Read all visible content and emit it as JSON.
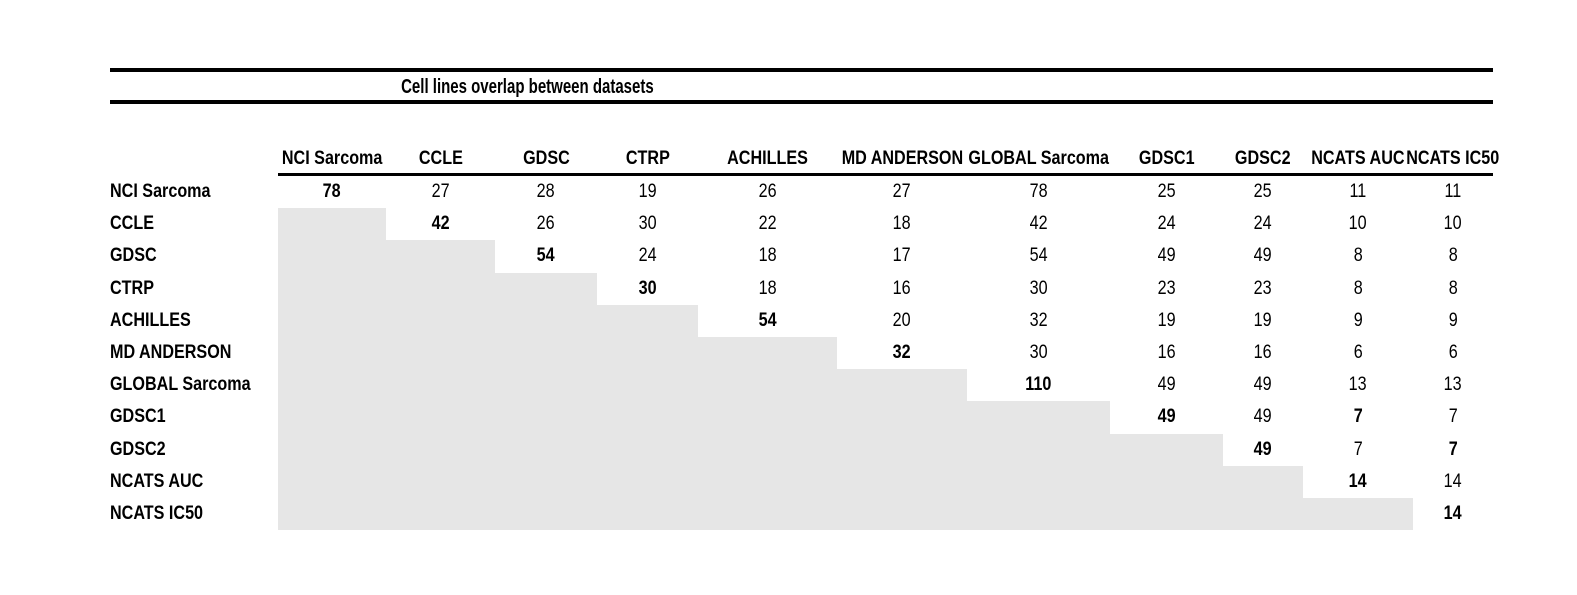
{
  "title": "Cell lines overlap between datasets",
  "colors": {
    "background": "#ffffff",
    "rule": "#000000",
    "text": "#000000",
    "shaded_cell": "#e6e6e6"
  },
  "table": {
    "columns": [
      "NCI Sarcoma",
      "CCLE",
      "GDSC",
      "CTRP",
      "ACHILLES",
      "MD ANDERSON",
      "GLOBAL Sarcoma",
      "GDSC1",
      "GDSC2",
      "NCATS AUC",
      "NCATS IC50"
    ],
    "rows": [
      {
        "label": "NCI Sarcoma",
        "values": [
          "78",
          "27",
          "28",
          "19",
          "26",
          "27",
          "78",
          "25",
          "25",
          "11",
          "11"
        ],
        "bold": [
          0
        ]
      },
      {
        "label": "CCLE",
        "values": [
          null,
          "42",
          "26",
          "30",
          "22",
          "18",
          "42",
          "24",
          "24",
          "10",
          "10"
        ],
        "bold": [
          1
        ]
      },
      {
        "label": "GDSC",
        "values": [
          null,
          null,
          "54",
          "24",
          "18",
          "17",
          "54",
          "49",
          "49",
          "8",
          "8"
        ],
        "bold": [
          2
        ]
      },
      {
        "label": "CTRP",
        "values": [
          null,
          null,
          null,
          "30",
          "18",
          "16",
          "30",
          "23",
          "23",
          "8",
          "8"
        ],
        "bold": [
          3
        ]
      },
      {
        "label": "ACHILLES",
        "values": [
          null,
          null,
          null,
          null,
          "54",
          "20",
          "32",
          "19",
          "19",
          "9",
          "9"
        ],
        "bold": [
          4
        ]
      },
      {
        "label": "MD ANDERSON",
        "values": [
          null,
          null,
          null,
          null,
          null,
          "32",
          "30",
          "16",
          "16",
          "6",
          "6"
        ],
        "bold": [
          5
        ]
      },
      {
        "label": "GLOBAL Sarcoma",
        "values": [
          null,
          null,
          null,
          null,
          null,
          null,
          "110",
          "49",
          "49",
          "13",
          "13"
        ],
        "bold": [
          6
        ]
      },
      {
        "label": "GDSC1",
        "values": [
          null,
          null,
          null,
          null,
          null,
          null,
          null,
          "49",
          "49",
          "7",
          "7"
        ],
        "bold": [
          7,
          9
        ]
      },
      {
        "label": "GDSC2",
        "values": [
          null,
          null,
          null,
          null,
          null,
          null,
          null,
          null,
          "49",
          "7",
          "7"
        ],
        "bold": [
          8,
          10
        ]
      },
      {
        "label": "NCATS AUC",
        "values": [
          null,
          null,
          null,
          null,
          null,
          null,
          null,
          null,
          null,
          "14",
          "14"
        ],
        "bold": [
          9
        ]
      },
      {
        "label": "NCATS IC50",
        "values": [
          null,
          null,
          null,
          null,
          null,
          null,
          null,
          null,
          null,
          null,
          "14"
        ],
        "bold": [
          10
        ]
      }
    ]
  }
}
